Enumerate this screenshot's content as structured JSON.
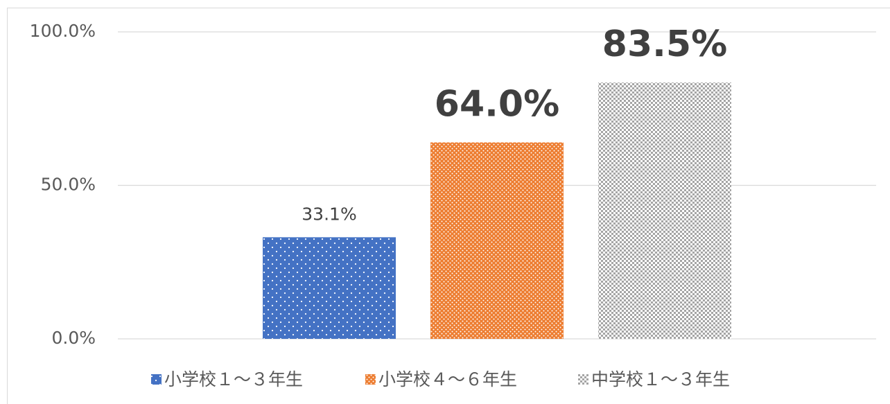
{
  "chart_data": {
    "type": "bar",
    "categories": [
      null
    ],
    "series": [
      {
        "name": "小学校１～３年生",
        "color": "#4472c4",
        "values": [
          33.1
        ],
        "value_labels": [
          "33.1%"
        ]
      },
      {
        "name": "小学校４～６年生",
        "color": "#ed7d31",
        "values": [
          64.0
        ],
        "value_labels": [
          "64.0%"
        ]
      },
      {
        "name": "中学校１～３年生",
        "color": "#a5a5a5",
        "values": [
          83.5
        ],
        "value_labels": [
          "83.5%"
        ]
      }
    ],
    "ylim": [
      0,
      100
    ],
    "yticks": [
      {
        "value": 0,
        "label": "0.0%"
      },
      {
        "value": 50,
        "label": "50.0%"
      },
      {
        "value": 100,
        "label": "100.0%"
      }
    ],
    "grid": true,
    "legend": "bottom"
  }
}
